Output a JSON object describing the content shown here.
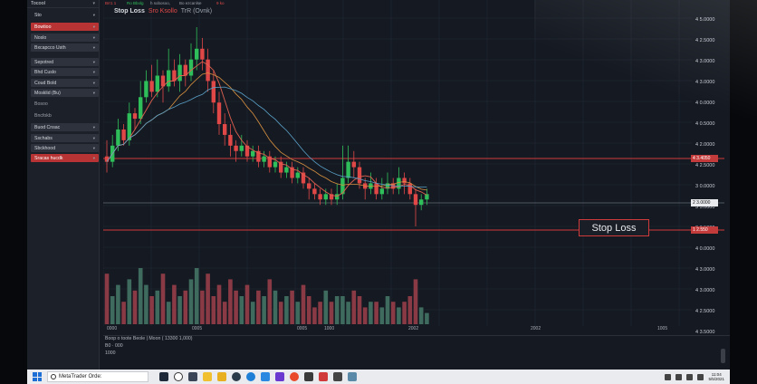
{
  "sidebar": {
    "header": "Tocool",
    "items": [
      {
        "label": "Sto",
        "style": "plain"
      },
      {
        "label": "Bowtioo",
        "style": "red"
      },
      {
        "label": "Noslo",
        "style": "dark"
      },
      {
        "label": "Bxcapcco Usth",
        "style": "dark"
      },
      {
        "label": "Sepotred",
        "style": "dark"
      },
      {
        "label": "Bhd Cuslo",
        "style": "dark"
      },
      {
        "label": "Coud Bold",
        "style": "dark"
      },
      {
        "label": "Mosklid (Bu)",
        "style": "dark"
      },
      {
        "label": "Bosoo",
        "style": "flat"
      },
      {
        "label": "Bncfokb",
        "style": "flat"
      },
      {
        "label": "Buod Cnsac",
        "style": "dark"
      },
      {
        "label": "Sschabs",
        "style": "dark"
      },
      {
        "label": "Sbckhood",
        "style": "dark"
      },
      {
        "label": "Sracas hucdk",
        "style": "red"
      }
    ]
  },
  "chart": {
    "topbar": {
      "symbol": "Stop Loss",
      "tag": "Sro Ksollo",
      "price": "TrR (Ovnk)"
    },
    "top_tags": [
      "Brr1 1",
      "Ro Bbolg",
      "h sobosoo,",
      "Bo ezcanlse",
      "9 ko"
    ],
    "price_labels": [
      "4 5.0000",
      "4 2.5000",
      "4 3.0000",
      "4 3.0000",
      "4 0.0000",
      "4 0.5000",
      "4 2.0000",
      "4 2.5000",
      "3 0.0000",
      "3 5.0000",
      "3 3.5000",
      "4 0.0000",
      "4 3.0000",
      "4 3.0000",
      "4 2.5000",
      "4 3.5000"
    ],
    "stop_loss_price": "4 3.4050",
    "current_price": "2 3.0000",
    "stop_loss_tag": "1 2.550",
    "stop_loss_label": "Stop Loss",
    "x_labels": [
      "0000",
      "0005",
      "0005",
      "1000",
      "2002",
      "2002",
      "1005"
    ]
  },
  "bottom_panel": {
    "line1": "Boop o toote  Beole | Moon ( 13300 1,000)",
    "line2": "B0 · 000",
    "line3": "1000"
  },
  "taskbar": {
    "search_text": "MetaTrader Orde:",
    "time": "11:04",
    "date": "5/5/2021"
  },
  "colors": {
    "bull": "#2fbf5a",
    "bear": "#e04848",
    "stop_line": "#d03a3a",
    "ma_fast": "#e06050",
    "ma_slow": "#5aa0c8",
    "ma_orange": "#d89040"
  },
  "chart_data": {
    "type": "candlestick",
    "candles": [
      [
        10,
        9,
        13,
        7
      ],
      [
        9,
        12,
        14,
        8
      ],
      [
        12,
        15,
        17,
        11
      ],
      [
        15,
        13,
        16,
        12
      ],
      [
        13,
        18,
        20,
        12
      ],
      [
        18,
        17,
        19,
        15
      ],
      [
        17,
        21,
        24,
        16
      ],
      [
        21,
        24,
        26,
        20
      ],
      [
        24,
        22,
        27,
        21
      ],
      [
        22,
        25,
        28,
        21
      ],
      [
        25,
        23,
        26,
        20
      ],
      [
        23,
        26,
        30,
        22
      ],
      [
        26,
        24,
        28,
        23
      ],
      [
        24,
        27,
        29,
        22
      ],
      [
        27,
        25,
        28,
        23
      ],
      [
        25,
        28,
        31,
        24
      ],
      [
        28,
        30,
        34,
        26
      ],
      [
        30,
        28,
        32,
        26
      ],
      [
        28,
        24,
        30,
        22
      ],
      [
        24,
        20,
        26,
        18
      ],
      [
        20,
        16,
        22,
        14
      ],
      [
        16,
        14,
        18,
        12
      ],
      [
        14,
        12,
        16,
        10
      ],
      [
        12,
        11,
        13,
        9
      ],
      [
        11,
        12,
        14,
        10
      ],
      [
        12,
        10,
        13,
        9
      ],
      [
        10,
        11,
        12,
        9
      ],
      [
        11,
        9,
        12,
        8
      ],
      [
        9,
        10,
        11,
        8
      ],
      [
        10,
        8,
        11,
        7
      ],
      [
        8,
        9,
        10,
        7
      ],
      [
        9,
        7,
        10,
        6
      ],
      [
        7,
        8,
        9,
        6
      ],
      [
        8,
        6,
        9,
        5
      ],
      [
        6,
        7,
        8,
        5
      ],
      [
        7,
        5,
        8,
        4
      ],
      [
        5,
        4,
        6,
        2
      ],
      [
        4,
        3,
        5,
        2
      ],
      [
        3,
        2,
        4,
        1
      ],
      [
        2,
        3,
        4,
        1
      ],
      [
        3,
        2,
        4,
        1
      ],
      [
        2,
        3,
        5,
        1
      ],
      [
        3,
        6,
        12,
        2
      ],
      [
        6,
        9,
        12,
        5
      ],
      [
        9,
        8,
        11,
        6
      ],
      [
        8,
        5,
        9,
        4
      ],
      [
        5,
        4,
        6,
        2
      ],
      [
        4,
        5,
        7,
        3
      ],
      [
        5,
        3,
        6,
        2
      ],
      [
        3,
        4,
        6,
        2
      ],
      [
        4,
        5,
        7,
        3
      ],
      [
        5,
        4,
        6,
        3
      ],
      [
        4,
        6,
        8,
        3
      ],
      [
        6,
        5,
        7,
        3
      ],
      [
        5,
        3,
        6,
        2
      ],
      [
        3,
        1,
        4,
        -3
      ],
      [
        1,
        2,
        3,
        0
      ],
      [
        2,
        3,
        4,
        1
      ]
    ],
    "volumes": [
      9,
      5,
      7,
      4,
      8,
      6,
      10,
      7,
      5,
      6,
      9,
      4,
      7,
      5,
      6,
      8,
      10,
      6,
      9,
      5,
      7,
      4,
      8,
      6,
      5,
      7,
      4,
      6,
      5,
      8,
      6,
      4,
      5,
      6,
      4,
      7,
      5,
      3,
      4,
      6,
      4,
      5,
      5,
      4,
      6,
      5,
      3,
      4,
      4,
      3,
      5,
      4,
      3,
      4,
      5,
      8,
      3,
      2
    ]
  }
}
